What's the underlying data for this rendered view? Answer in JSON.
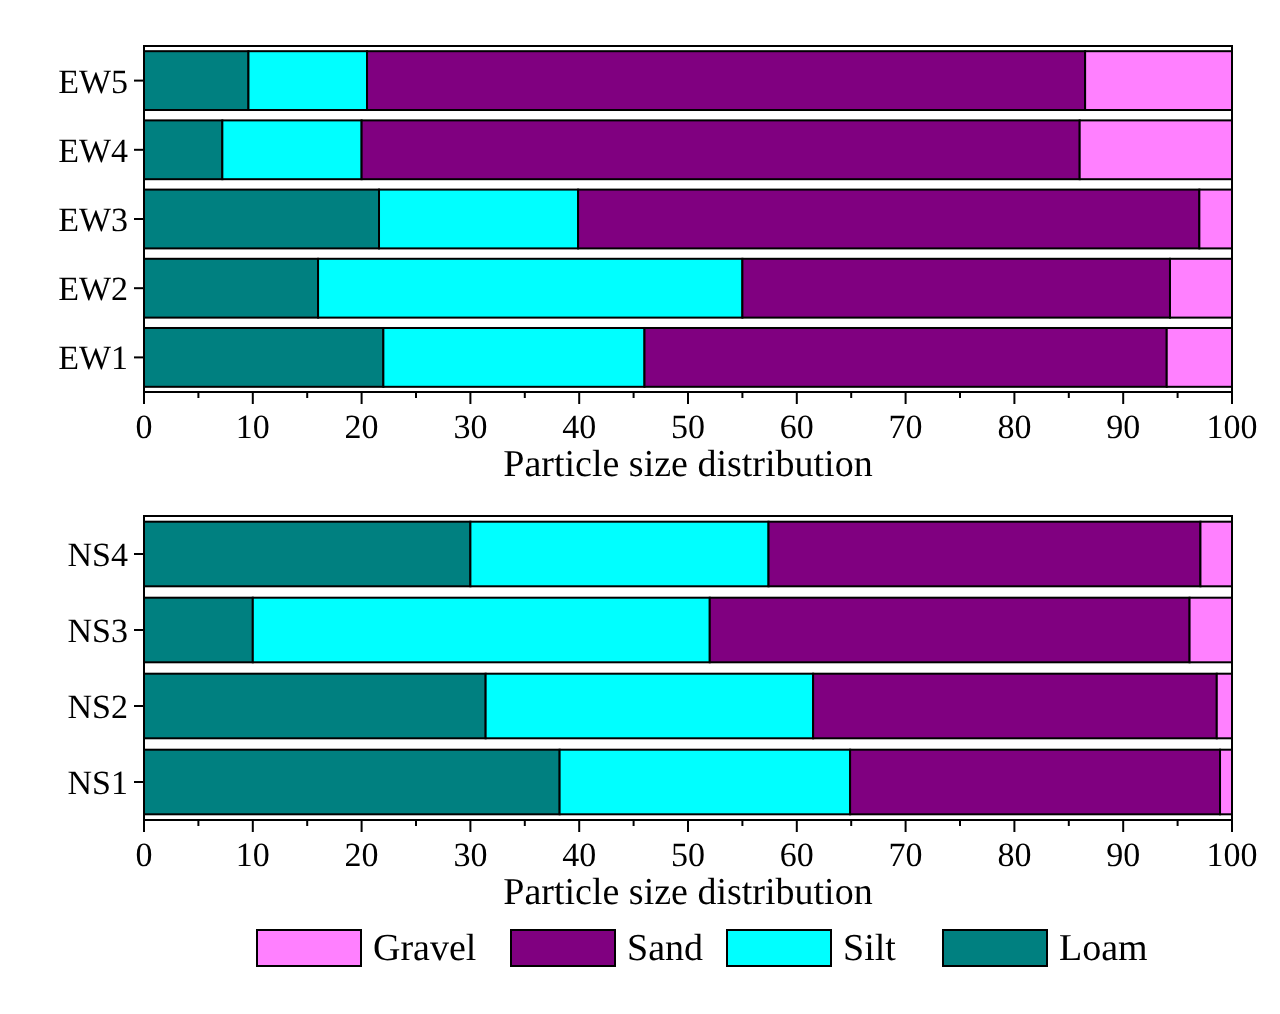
{
  "chart_data": [
    {
      "type": "bar",
      "orientation": "horizontal",
      "stacked": true,
      "xlabel": "Particle size distribution",
      "categories": [
        "EW5",
        "EW4",
        "EW3",
        "EW2",
        "EW1"
      ],
      "xlim": [
        0,
        100
      ],
      "xticks": [
        0,
        10,
        20,
        30,
        40,
        50,
        60,
        70,
        80,
        90,
        100
      ],
      "legend": false,
      "grid": false,
      "series": [
        {
          "color": "#008080",
          "values": [
            9.6,
            7.2,
            21.6,
            16,
            22
          ]
        },
        {
          "color": "#00ffff",
          "values": [
            10.9,
            12.8,
            18.3,
            39,
            24
          ]
        },
        {
          "color": "#800080",
          "values": [
            66,
            66,
            57.1,
            39.3,
            48
          ]
        },
        {
          "color": "#ff80ff",
          "values": [
            13.5,
            14,
            3,
            5.7,
            6
          ]
        }
      ]
    },
    {
      "type": "bar",
      "orientation": "horizontal",
      "stacked": true,
      "xlabel": "Particle size distribution",
      "categories": [
        "NS4",
        "NS3",
        "NS2",
        "NS1"
      ],
      "xlim": [
        0,
        100
      ],
      "xticks": [
        0,
        10,
        20,
        30,
        40,
        50,
        60,
        70,
        80,
        90,
        100
      ],
      "legend": "bottom",
      "grid": false,
      "series": [
        {
          "name": "Loam",
          "color": "#008080",
          "values": [
            30,
            10,
            31.4,
            38.2
          ]
        },
        {
          "name": "Silt",
          "color": "#00ffff",
          "values": [
            27.4,
            42,
            30.1,
            26.7
          ]
        },
        {
          "name": "Sand",
          "color": "#800080",
          "values": [
            39.7,
            44.1,
            37.1,
            34
          ]
        },
        {
          "name": "Gravel",
          "color": "#ff80ff",
          "values": [
            2.9,
            3.9,
            1.4,
            1.1
          ]
        }
      ]
    }
  ]
}
